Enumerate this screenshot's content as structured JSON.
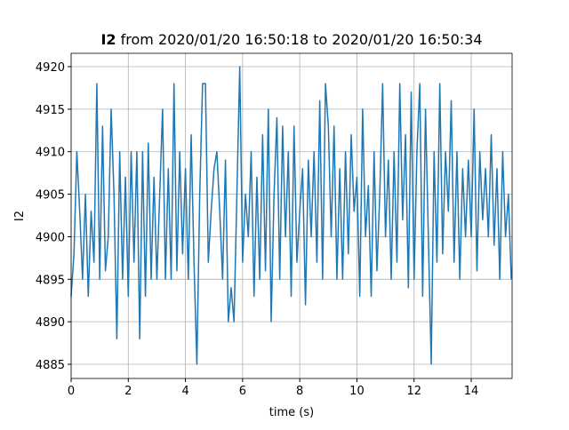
{
  "chart_data": {
    "type": "line",
    "title_parts": [
      "I2",
      "from 2020/01/20 16:50:18 to 2020/01/20 16:50:34"
    ],
    "x_label": "time (s)",
    "y_label": "I2",
    "x": [
      0,
      0.1,
      0.2,
      0.3,
      0.4,
      0.5,
      0.6,
      0.7,
      0.8,
      0.9,
      1,
      1.1,
      1.2,
      1.3,
      1.4,
      1.5,
      1.6,
      1.7,
      1.8,
      1.9,
      2,
      2.1,
      2.2,
      2.3,
      2.4,
      2.5,
      2.6,
      2.7,
      2.8,
      2.9,
      3,
      3.1,
      3.2,
      3.3,
      3.4,
      3.5,
      3.6,
      3.7,
      3.8,
      3.9,
      4,
      4.1,
      4.2,
      4.3,
      4.4,
      4.5,
      4.6,
      4.7,
      4.8,
      4.9,
      5,
      5.1,
      5.2,
      5.3,
      5.4,
      5.5,
      5.6,
      5.7,
      5.8,
      5.9,
      6,
      6.1,
      6.2,
      6.3,
      6.4,
      6.5,
      6.6,
      6.7,
      6.8,
      6.9,
      7,
      7.1,
      7.2,
      7.3,
      7.4,
      7.5,
      7.6,
      7.7,
      7.8,
      7.9,
      8,
      8.1,
      8.2,
      8.3,
      8.4,
      8.5,
      8.6,
      8.7,
      8.8,
      8.9,
      9,
      9.1,
      9.2,
      9.3,
      9.4,
      9.5,
      9.6,
      9.7,
      9.8,
      9.9,
      10,
      10.1,
      10.2,
      10.3,
      10.4,
      10.5,
      10.6,
      10.7,
      10.8,
      10.9,
      11,
      11.1,
      11.2,
      11.3,
      11.4,
      11.5,
      11.6,
      11.7,
      11.8,
      11.9,
      12,
      12.1,
      12.2,
      12.3,
      12.4,
      12.5,
      12.6,
      12.7,
      12.8,
      12.9,
      13,
      13.1,
      13.2,
      13.3,
      13.4,
      13.5,
      13.6,
      13.7,
      13.8,
      13.9,
      14,
      14.1,
      14.2,
      14.3,
      14.4,
      14.5,
      14.6,
      14.7,
      14.8,
      14.9,
      15,
      15.1,
      15.2,
      15.3,
      15.4
    ],
    "series": [
      {
        "name": "I2",
        "color": "#1f77b4",
        "values": [
          4893,
          4898,
          4910,
          4903,
          4895,
          4905,
          4893,
          4903,
          4897,
          4918,
          4895,
          4913,
          4896,
          4900,
          4915,
          4905,
          4888,
          4910,
          4895,
          4907,
          4893,
          4910,
          4897,
          4910,
          4888,
          4910,
          4893,
          4911,
          4895,
          4907,
          4895,
          4905,
          4915,
          4895,
          4908,
          4895,
          4918,
          4896,
          4910,
          4898,
          4908,
          4895,
          4912,
          4897,
          4885,
          4905,
          4918,
          4918,
          4897,
          4903,
          4908,
          4910,
          4903,
          4895,
          4909,
          4890,
          4894,
          4890,
          4905,
          4920,
          4897,
          4905,
          4900,
          4910,
          4893,
          4907,
          4895,
          4912,
          4896,
          4915,
          4890,
          4905,
          4914,
          4895,
          4913,
          4900,
          4910,
          4893,
          4913,
          4897,
          4903,
          4908,
          4892,
          4909,
          4900,
          4910,
          4897,
          4916,
          4895,
          4918,
          4913,
          4900,
          4913,
          4895,
          4908,
          4895,
          4910,
          4898,
          4912,
          4903,
          4907,
          4893,
          4915,
          4900,
          4906,
          4893,
          4910,
          4896,
          4905,
          4918,
          4900,
          4909,
          4895,
          4910,
          4897,
          4918,
          4902,
          4912,
          4894,
          4917,
          4895,
          4910,
          4918,
          4893,
          4915,
          4900,
          4885,
          4910,
          4897,
          4918,
          4898,
          4910,
          4903,
          4916,
          4897,
          4910,
          4895,
          4908,
          4900,
          4909,
          4900,
          4915,
          4896,
          4910,
          4902,
          4908,
          4900,
          4912,
          4899,
          4908,
          4895,
          4910,
          4900,
          4905,
          4895
        ]
      }
    ],
    "xlim": [
      0,
      15.43
    ],
    "ylim": [
      4883.33,
      4921.57
    ],
    "xticks": [
      0,
      2,
      4,
      6,
      8,
      10,
      12,
      14
    ],
    "yticks": [
      4885,
      4890,
      4895,
      4900,
      4905,
      4910,
      4915,
      4920
    ],
    "grid": true
  }
}
